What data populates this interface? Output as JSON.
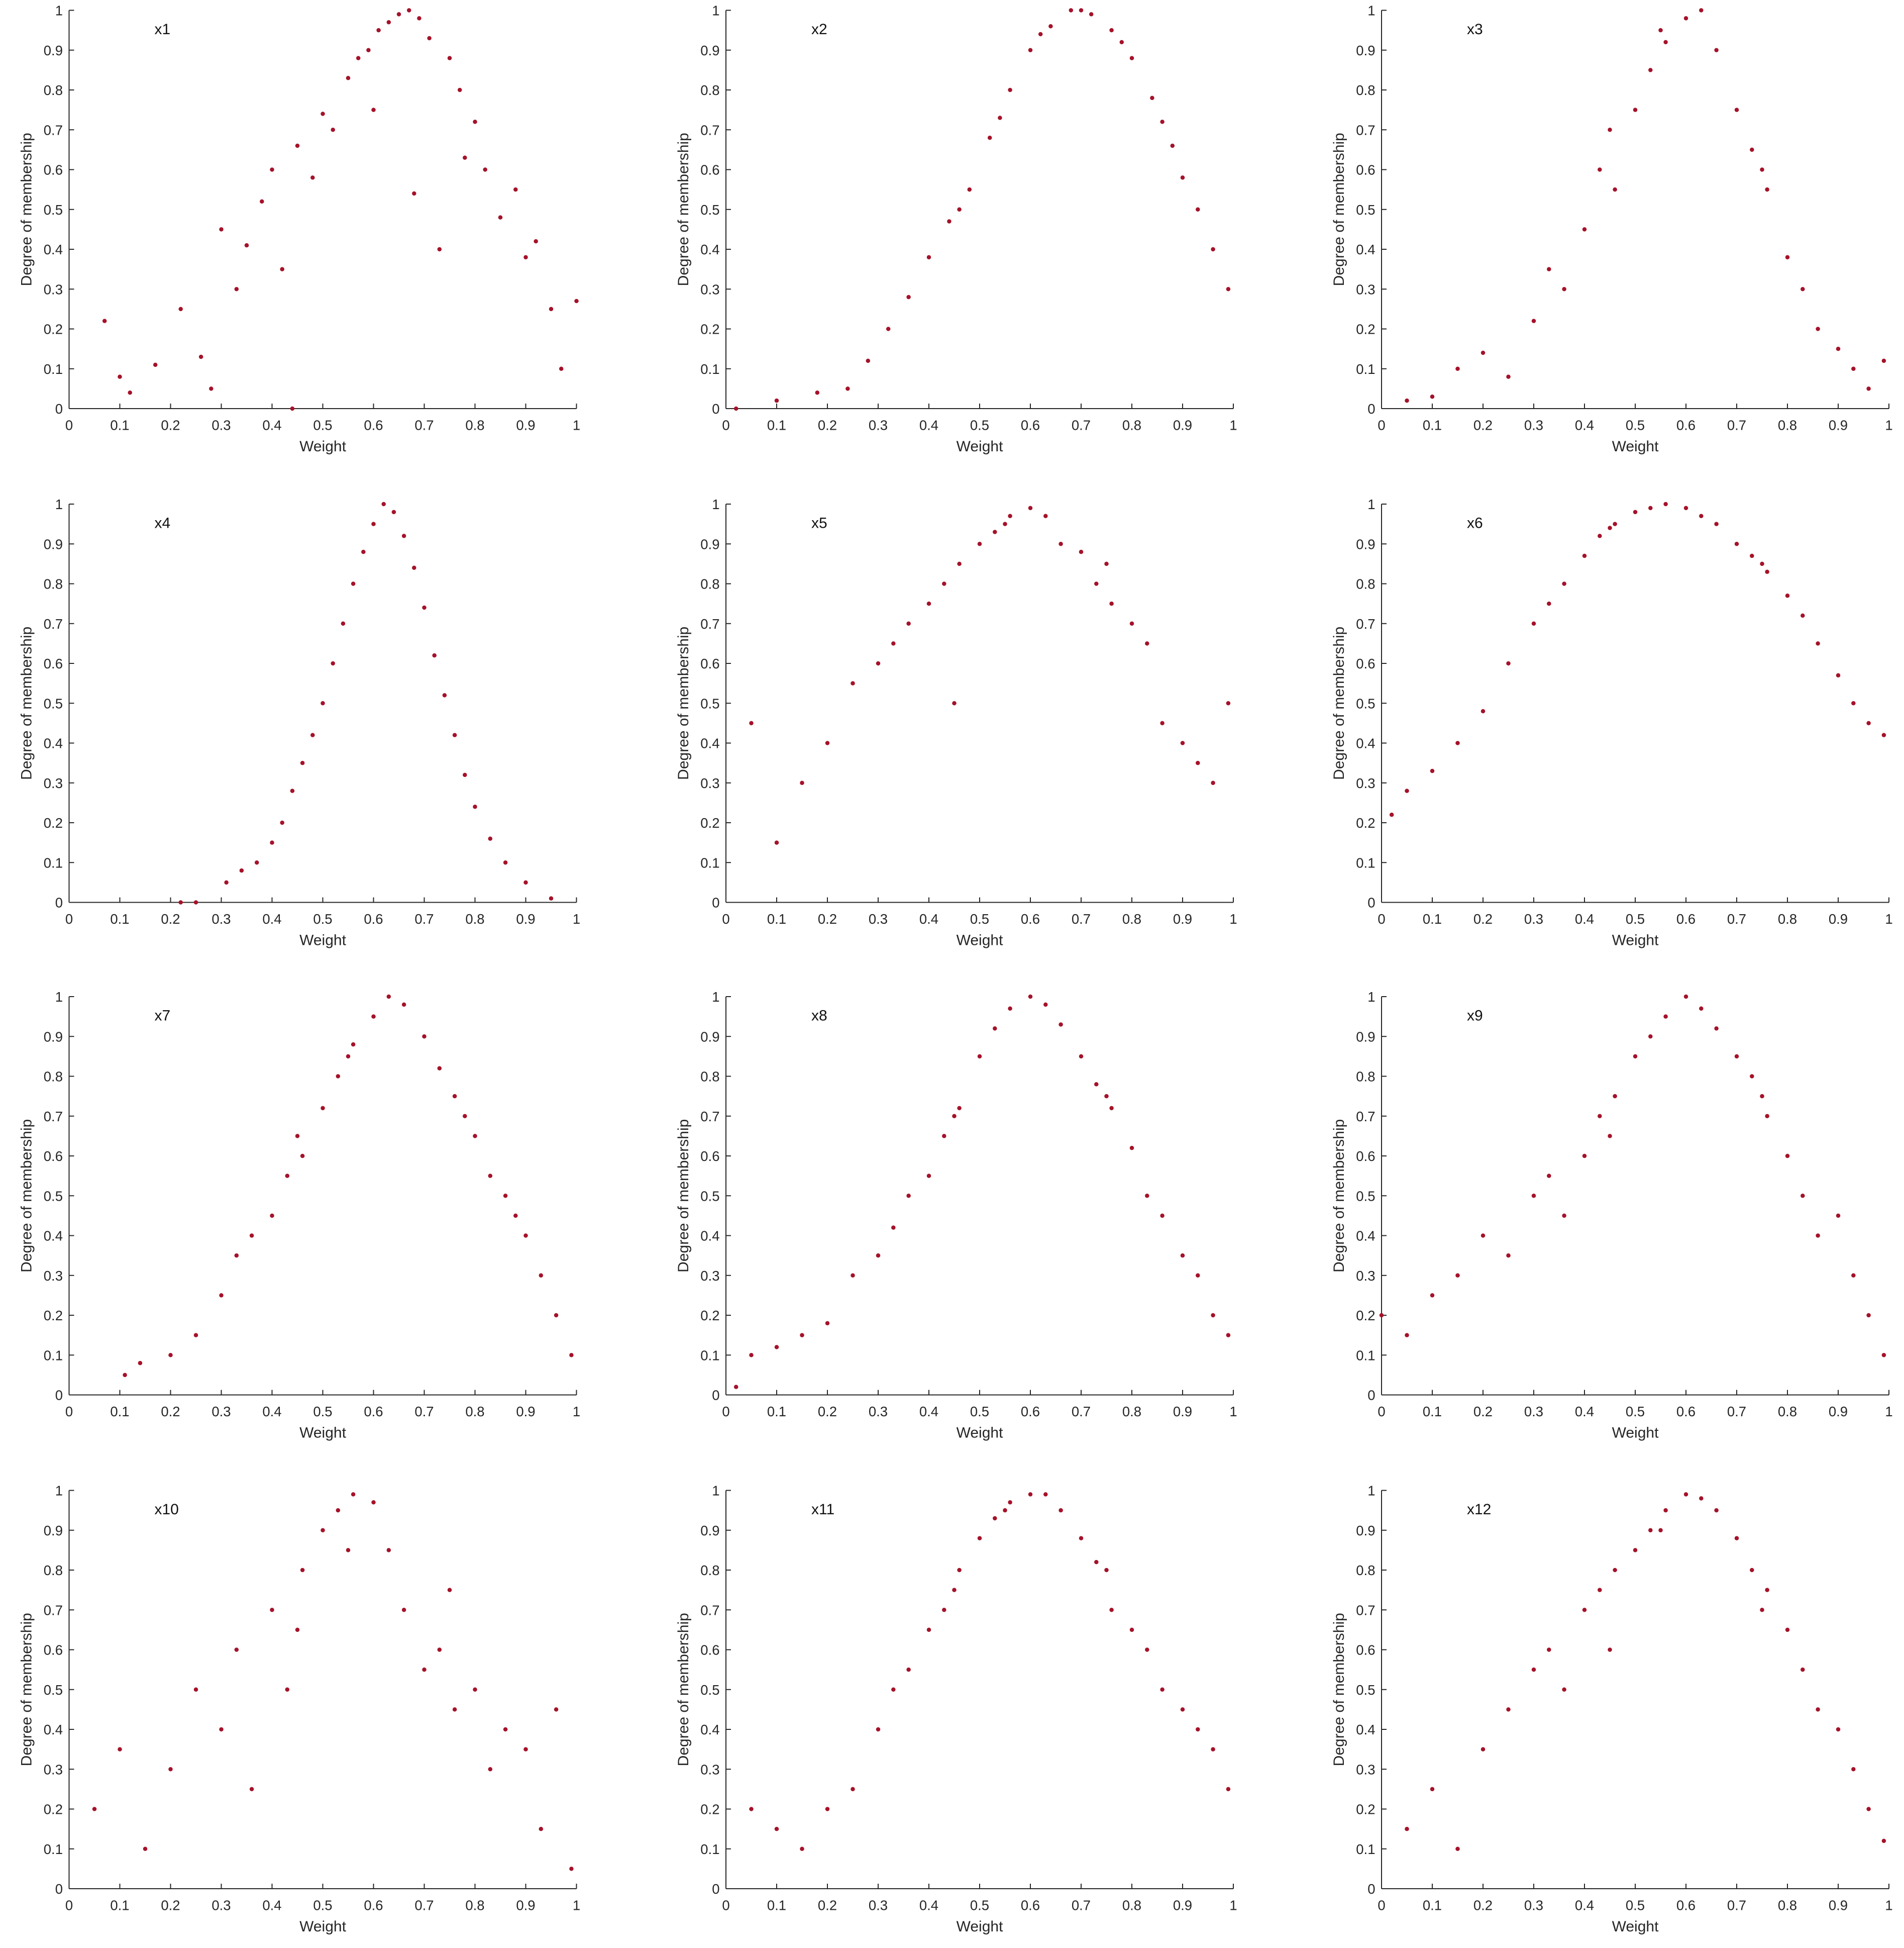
{
  "chart_data": [
    {
      "type": "scatter",
      "title": "x1",
      "xlabel": "Weight",
      "ylabel": "Degree of membership",
      "color": "#a5122a",
      "xlim": [
        0,
        1
      ],
      "ylim": [
        0,
        1
      ],
      "xticks": [
        0,
        0.1,
        0.2,
        0.3,
        0.4,
        0.5,
        0.6,
        0.7,
        0.8,
        0.9,
        1
      ],
      "yticks": [
        0,
        0.1,
        0.2,
        0.3,
        0.4,
        0.5,
        0.6,
        0.7,
        0.8,
        0.9,
        1
      ],
      "x": [
        0.07,
        0.1,
        0.12,
        0.17,
        0.22,
        0.26,
        0.28,
        0.3,
        0.33,
        0.35,
        0.38,
        0.4,
        0.42,
        0.44,
        0.45,
        0.48,
        0.5,
        0.52,
        0.55,
        0.57,
        0.59,
        0.61,
        0.63,
        0.65,
        0.67,
        0.69,
        0.71,
        0.73,
        0.75,
        0.77,
        0.8,
        0.82,
        0.85,
        0.88,
        0.9,
        0.92,
        0.95,
        0.97,
        1.0,
        0.68,
        0.6,
        0.78
      ],
      "y": [
        0.22,
        0.08,
        0.04,
        0.11,
        0.25,
        0.13,
        0.05,
        0.45,
        0.3,
        0.41,
        0.52,
        0.6,
        0.35,
        0.0,
        0.66,
        0.58,
        0.74,
        0.7,
        0.83,
        0.88,
        0.9,
        0.95,
        0.97,
        0.99,
        1.0,
        0.98,
        0.93,
        0.4,
        0.88,
        0.8,
        0.72,
        0.6,
        0.48,
        0.55,
        0.38,
        0.42,
        0.25,
        0.1,
        0.27,
        0.54,
        0.75,
        0.63
      ]
    },
    {
      "type": "scatter",
      "title": "x2",
      "xlabel": "Weight",
      "ylabel": "Degree of membership",
      "color": "#a5122a",
      "xlim": [
        0,
        1
      ],
      "ylim": [
        0,
        1
      ],
      "xticks": [
        0,
        0.1,
        0.2,
        0.3,
        0.4,
        0.5,
        0.6,
        0.7,
        0.8,
        0.9,
        1
      ],
      "yticks": [
        0,
        0.1,
        0.2,
        0.3,
        0.4,
        0.5,
        0.6,
        0.7,
        0.8,
        0.9,
        1
      ],
      "x": [
        0.02,
        0.1,
        0.18,
        0.24,
        0.28,
        0.32,
        0.36,
        0.4,
        0.44,
        0.48,
        0.52,
        0.56,
        0.6,
        0.64,
        0.68,
        0.7,
        0.72,
        0.76,
        0.8,
        0.84,
        0.88,
        0.9,
        0.93,
        0.96,
        0.99,
        0.46,
        0.54,
        0.62,
        0.78,
        0.86
      ],
      "y": [
        0.0,
        0.02,
        0.04,
        0.05,
        0.12,
        0.2,
        0.28,
        0.38,
        0.47,
        0.55,
        0.68,
        0.8,
        0.9,
        0.96,
        1.0,
        1.0,
        0.99,
        0.95,
        0.88,
        0.78,
        0.66,
        0.58,
        0.5,
        0.4,
        0.3,
        0.5,
        0.73,
        0.94,
        0.92,
        0.72
      ]
    },
    {
      "type": "scatter",
      "title": "x3",
      "xlabel": "Weight",
      "ylabel": "Degree of membership",
      "color": "#a5122a",
      "xlim": [
        0,
        1
      ],
      "ylim": [
        0,
        1
      ],
      "xticks": [
        0,
        0.1,
        0.2,
        0.3,
        0.4,
        0.5,
        0.6,
        0.7,
        0.8,
        0.9,
        1
      ],
      "yticks": [
        0,
        0.1,
        0.2,
        0.3,
        0.4,
        0.5,
        0.6,
        0.7,
        0.8,
        0.9,
        1
      ],
      "x": [
        0.05,
        0.1,
        0.15,
        0.2,
        0.25,
        0.3,
        0.33,
        0.36,
        0.4,
        0.43,
        0.46,
        0.5,
        0.53,
        0.56,
        0.6,
        0.63,
        0.66,
        0.7,
        0.73,
        0.76,
        0.8,
        0.83,
        0.86,
        0.9,
        0.93,
        0.96,
        0.99,
        0.45,
        0.55,
        0.75
      ],
      "y": [
        0.02,
        0.03,
        0.1,
        0.14,
        0.08,
        0.22,
        0.35,
        0.3,
        0.45,
        0.6,
        0.55,
        0.75,
        0.85,
        0.92,
        0.98,
        1.0,
        0.9,
        0.75,
        0.65,
        0.55,
        0.38,
        0.3,
        0.2,
        0.15,
        0.1,
        0.05,
        0.12,
        0.7,
        0.95,
        0.6
      ]
    },
    {
      "type": "scatter",
      "title": "x4",
      "xlabel": "Weight",
      "ylabel": "Degree of membership",
      "color": "#a5122a",
      "xlim": [
        0,
        1
      ],
      "ylim": [
        0,
        1
      ],
      "xticks": [
        0,
        0.1,
        0.2,
        0.3,
        0.4,
        0.5,
        0.6,
        0.7,
        0.8,
        0.9,
        1
      ],
      "yticks": [
        0,
        0.1,
        0.2,
        0.3,
        0.4,
        0.5,
        0.6,
        0.7,
        0.8,
        0.9,
        1
      ],
      "x": [
        0.22,
        0.25,
        0.31,
        0.34,
        0.37,
        0.4,
        0.42,
        0.44,
        0.46,
        0.48,
        0.5,
        0.52,
        0.54,
        0.56,
        0.58,
        0.6,
        0.62,
        0.64,
        0.66,
        0.68,
        0.7,
        0.72,
        0.74,
        0.76,
        0.78,
        0.8,
        0.83,
        0.86,
        0.9,
        0.95
      ],
      "y": [
        0.0,
        0.0,
        0.05,
        0.08,
        0.1,
        0.15,
        0.2,
        0.28,
        0.35,
        0.42,
        0.5,
        0.6,
        0.7,
        0.8,
        0.88,
        0.95,
        1.0,
        0.98,
        0.92,
        0.84,
        0.74,
        0.62,
        0.52,
        0.42,
        0.32,
        0.24,
        0.16,
        0.1,
        0.05,
        0.01
      ]
    },
    {
      "type": "scatter",
      "title": "x5",
      "xlabel": "Weight",
      "ylabel": "Degree of membership",
      "color": "#a5122a",
      "xlim": [
        0,
        1
      ],
      "ylim": [
        0,
        1
      ],
      "xticks": [
        0,
        0.1,
        0.2,
        0.3,
        0.4,
        0.5,
        0.6,
        0.7,
        0.8,
        0.9,
        1
      ],
      "yticks": [
        0,
        0.1,
        0.2,
        0.3,
        0.4,
        0.5,
        0.6,
        0.7,
        0.8,
        0.9,
        1
      ],
      "x": [
        0.05,
        0.1,
        0.15,
        0.2,
        0.25,
        0.3,
        0.33,
        0.36,
        0.4,
        0.43,
        0.46,
        0.5,
        0.53,
        0.56,
        0.6,
        0.63,
        0.66,
        0.7,
        0.73,
        0.76,
        0.8,
        0.83,
        0.86,
        0.9,
        0.93,
        0.96,
        0.99,
        0.45,
        0.55,
        0.75
      ],
      "y": [
        0.45,
        0.15,
        0.3,
        0.4,
        0.55,
        0.6,
        0.65,
        0.7,
        0.75,
        0.8,
        0.85,
        0.9,
        0.93,
        0.97,
        0.99,
        0.97,
        0.9,
        0.88,
        0.8,
        0.75,
        0.7,
        0.65,
        0.45,
        0.4,
        0.35,
        0.3,
        0.5,
        0.5,
        0.95,
        0.85
      ]
    },
    {
      "type": "scatter",
      "title": "x6",
      "xlabel": "Weight",
      "ylabel": "Degree of membership",
      "color": "#a5122a",
      "xlim": [
        0,
        1
      ],
      "ylim": [
        0,
        1
      ],
      "xticks": [
        0,
        0.1,
        0.2,
        0.3,
        0.4,
        0.5,
        0.6,
        0.7,
        0.8,
        0.9,
        1
      ],
      "yticks": [
        0,
        0.1,
        0.2,
        0.3,
        0.4,
        0.5,
        0.6,
        0.7,
        0.8,
        0.9,
        1
      ],
      "x": [
        0.02,
        0.05,
        0.1,
        0.15,
        0.2,
        0.25,
        0.3,
        0.33,
        0.36,
        0.4,
        0.43,
        0.46,
        0.5,
        0.53,
        0.56,
        0.6,
        0.63,
        0.66,
        0.7,
        0.73,
        0.76,
        0.8,
        0.83,
        0.86,
        0.9,
        0.93,
        0.96,
        0.99,
        0.45,
        0.75
      ],
      "y": [
        0.22,
        0.28,
        0.33,
        0.4,
        0.48,
        0.6,
        0.7,
        0.75,
        0.8,
        0.87,
        0.92,
        0.95,
        0.98,
        0.99,
        1.0,
        0.99,
        0.97,
        0.95,
        0.9,
        0.87,
        0.83,
        0.77,
        0.72,
        0.65,
        0.57,
        0.5,
        0.45,
        0.42,
        0.94,
        0.85
      ]
    },
    {
      "type": "scatter",
      "title": "x7",
      "xlabel": "Weight",
      "ylabel": "Degree of membership",
      "color": "#a5122a",
      "xlim": [
        0,
        1
      ],
      "ylim": [
        0,
        1
      ],
      "xticks": [
        0,
        0.1,
        0.2,
        0.3,
        0.4,
        0.5,
        0.6,
        0.7,
        0.8,
        0.9,
        1
      ],
      "yticks": [
        0,
        0.1,
        0.2,
        0.3,
        0.4,
        0.5,
        0.6,
        0.7,
        0.8,
        0.9,
        1
      ],
      "x": [
        0.11,
        0.14,
        0.2,
        0.25,
        0.3,
        0.33,
        0.36,
        0.4,
        0.43,
        0.46,
        0.5,
        0.53,
        0.56,
        0.6,
        0.63,
        0.66,
        0.7,
        0.73,
        0.76,
        0.8,
        0.83,
        0.86,
        0.9,
        0.93,
        0.96,
        0.99,
        0.45,
        0.55,
        0.78,
        0.88
      ],
      "y": [
        0.05,
        0.08,
        0.1,
        0.15,
        0.25,
        0.35,
        0.4,
        0.45,
        0.55,
        0.6,
        0.72,
        0.8,
        0.88,
        0.95,
        1.0,
        0.98,
        0.9,
        0.82,
        0.75,
        0.65,
        0.55,
        0.5,
        0.4,
        0.3,
        0.2,
        0.1,
        0.65,
        0.85,
        0.7,
        0.45
      ]
    },
    {
      "type": "scatter",
      "title": "x8",
      "xlabel": "Weight",
      "ylabel": "Degree of membership",
      "color": "#a5122a",
      "xlim": [
        0,
        1
      ],
      "ylim": [
        0,
        1
      ],
      "xticks": [
        0,
        0.1,
        0.2,
        0.3,
        0.4,
        0.5,
        0.6,
        0.7,
        0.8,
        0.9,
        1
      ],
      "yticks": [
        0,
        0.1,
        0.2,
        0.3,
        0.4,
        0.5,
        0.6,
        0.7,
        0.8,
        0.9,
        1
      ],
      "x": [
        0.02,
        0.05,
        0.1,
        0.15,
        0.2,
        0.25,
        0.3,
        0.33,
        0.36,
        0.4,
        0.43,
        0.46,
        0.5,
        0.53,
        0.56,
        0.6,
        0.63,
        0.66,
        0.7,
        0.73,
        0.76,
        0.8,
        0.83,
        0.86,
        0.9,
        0.93,
        0.96,
        0.99,
        0.45,
        0.75
      ],
      "y": [
        0.02,
        0.1,
        0.12,
        0.15,
        0.18,
        0.3,
        0.35,
        0.42,
        0.5,
        0.55,
        0.65,
        0.72,
        0.85,
        0.92,
        0.97,
        1.0,
        0.98,
        0.93,
        0.85,
        0.78,
        0.72,
        0.62,
        0.5,
        0.45,
        0.35,
        0.3,
        0.2,
        0.15,
        0.7,
        0.75
      ]
    },
    {
      "type": "scatter",
      "title": "x9",
      "xlabel": "Weight",
      "ylabel": "Degree of membership",
      "color": "#a5122a",
      "xlim": [
        0,
        1
      ],
      "ylim": [
        0,
        1
      ],
      "xticks": [
        0,
        0.1,
        0.2,
        0.3,
        0.4,
        0.5,
        0.6,
        0.7,
        0.8,
        0.9,
        1
      ],
      "yticks": [
        0,
        0.1,
        0.2,
        0.3,
        0.4,
        0.5,
        0.6,
        0.7,
        0.8,
        0.9,
        1
      ],
      "x": [
        0.0,
        0.05,
        0.1,
        0.15,
        0.2,
        0.25,
        0.3,
        0.33,
        0.36,
        0.4,
        0.43,
        0.46,
        0.5,
        0.53,
        0.56,
        0.6,
        0.63,
        0.66,
        0.7,
        0.73,
        0.76,
        0.8,
        0.83,
        0.86,
        0.9,
        0.93,
        0.96,
        0.99,
        0.45,
        0.75
      ],
      "y": [
        0.2,
        0.15,
        0.25,
        0.3,
        0.4,
        0.35,
        0.5,
        0.55,
        0.45,
        0.6,
        0.7,
        0.75,
        0.85,
        0.9,
        0.95,
        1.0,
        0.97,
        0.92,
        0.85,
        0.8,
        0.7,
        0.6,
        0.5,
        0.4,
        0.45,
        0.3,
        0.2,
        0.1,
        0.65,
        0.75
      ]
    },
    {
      "type": "scatter",
      "title": "x10",
      "xlabel": "Weight",
      "ylabel": "Degree of membership",
      "color": "#a5122a",
      "xlim": [
        0,
        1
      ],
      "ylim": [
        0,
        1
      ],
      "xticks": [
        0,
        0.1,
        0.2,
        0.3,
        0.4,
        0.5,
        0.6,
        0.7,
        0.8,
        0.9,
        1
      ],
      "yticks": [
        0,
        0.1,
        0.2,
        0.3,
        0.4,
        0.5,
        0.6,
        0.7,
        0.8,
        0.9,
        1
      ],
      "x": [
        0.05,
        0.1,
        0.15,
        0.2,
        0.25,
        0.3,
        0.33,
        0.36,
        0.4,
        0.43,
        0.46,
        0.5,
        0.53,
        0.56,
        0.6,
        0.63,
        0.66,
        0.7,
        0.73,
        0.76,
        0.8,
        0.83,
        0.86,
        0.9,
        0.93,
        0.96,
        0.99,
        0.45,
        0.55,
        0.75
      ],
      "y": [
        0.2,
        0.35,
        0.1,
        0.3,
        0.5,
        0.4,
        0.6,
        0.25,
        0.7,
        0.5,
        0.8,
        0.9,
        0.95,
        0.99,
        0.97,
        0.85,
        0.7,
        0.55,
        0.6,
        0.45,
        0.5,
        0.3,
        0.4,
        0.35,
        0.15,
        0.45,
        0.05,
        0.65,
        0.85,
        0.75
      ]
    },
    {
      "type": "scatter",
      "title": "x11",
      "xlabel": "Weight",
      "ylabel": "Degree of membership",
      "color": "#a5122a",
      "xlim": [
        0,
        1
      ],
      "ylim": [
        0,
        1
      ],
      "xticks": [
        0,
        0.1,
        0.2,
        0.3,
        0.4,
        0.5,
        0.6,
        0.7,
        0.8,
        0.9,
        1
      ],
      "yticks": [
        0,
        0.1,
        0.2,
        0.3,
        0.4,
        0.5,
        0.6,
        0.7,
        0.8,
        0.9,
        1
      ],
      "x": [
        0.05,
        0.1,
        0.15,
        0.2,
        0.25,
        0.3,
        0.33,
        0.36,
        0.4,
        0.43,
        0.46,
        0.5,
        0.53,
        0.56,
        0.6,
        0.63,
        0.66,
        0.7,
        0.73,
        0.76,
        0.8,
        0.83,
        0.86,
        0.9,
        0.93,
        0.96,
        0.99,
        0.45,
        0.55,
        0.75
      ],
      "y": [
        0.2,
        0.15,
        0.1,
        0.2,
        0.25,
        0.4,
        0.5,
        0.55,
        0.65,
        0.7,
        0.8,
        0.88,
        0.93,
        0.97,
        0.99,
        0.99,
        0.95,
        0.88,
        0.82,
        0.7,
        0.65,
        0.6,
        0.5,
        0.45,
        0.4,
        0.35,
        0.25,
        0.75,
        0.95,
        0.8
      ]
    },
    {
      "type": "scatter",
      "title": "x12",
      "xlabel": "Weight",
      "ylabel": "Degree of membership",
      "color": "#a5122a",
      "xlim": [
        0,
        1
      ],
      "ylim": [
        0,
        1
      ],
      "xticks": [
        0,
        0.1,
        0.2,
        0.3,
        0.4,
        0.5,
        0.6,
        0.7,
        0.8,
        0.9,
        1
      ],
      "yticks": [
        0,
        0.1,
        0.2,
        0.3,
        0.4,
        0.5,
        0.6,
        0.7,
        0.8,
        0.9,
        1
      ],
      "x": [
        0.05,
        0.1,
        0.15,
        0.2,
        0.25,
        0.3,
        0.33,
        0.36,
        0.4,
        0.43,
        0.46,
        0.5,
        0.53,
        0.56,
        0.6,
        0.63,
        0.66,
        0.7,
        0.73,
        0.76,
        0.8,
        0.83,
        0.86,
        0.9,
        0.93,
        0.96,
        0.99,
        0.45,
        0.55,
        0.75
      ],
      "y": [
        0.15,
        0.25,
        0.1,
        0.35,
        0.45,
        0.55,
        0.6,
        0.5,
        0.7,
        0.75,
        0.8,
        0.85,
        0.9,
        0.95,
        0.99,
        0.98,
        0.95,
        0.88,
        0.8,
        0.75,
        0.65,
        0.55,
        0.45,
        0.4,
        0.3,
        0.2,
        0.12,
        0.6,
        0.9,
        0.7
      ]
    }
  ]
}
